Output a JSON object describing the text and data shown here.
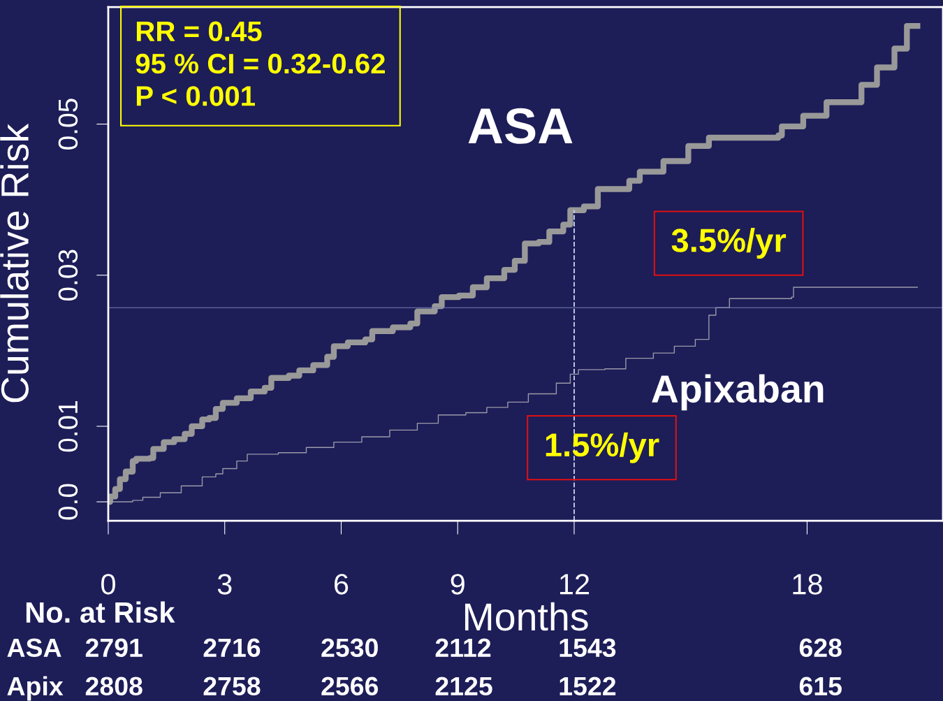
{
  "chart_data": {
    "type": "step",
    "xlabel": "Months",
    "ylabel": "Cumulative Risk",
    "xlim": [
      0,
      21.5
    ],
    "xticks": [
      0,
      3,
      6,
      9,
      12,
      18
    ],
    "ylim": [
      -0.0025,
      0.0655
    ],
    "yticks": [
      {
        "value": 0,
        "label": "0.0"
      },
      0.01,
      0.03,
      0.05
    ],
    "grid": false,
    "series": [
      {
        "name": "ASA",
        "color": "#999999",
        "x": [
          0,
          0.05,
          0.18,
          0.3,
          0.45,
          0.63,
          0.72,
          1.07,
          1.16,
          1.43,
          1.7,
          1.97,
          2.15,
          2.42,
          2.6,
          2.77,
          2.95,
          3.31,
          3.67,
          4.03,
          4.2,
          4.65,
          4.92,
          5.28,
          5.64,
          5.81,
          6.17,
          6.62,
          6.8,
          7.33,
          7.78,
          7.96,
          8.41,
          8.59,
          9.03,
          9.39,
          9.75,
          10.2,
          10.47,
          10.73,
          11.09,
          11.36,
          11.72,
          11.9,
          12.25,
          12.61,
          13.33,
          13.42,
          13.69,
          14.3,
          14.94,
          15.47,
          17.26,
          17.35,
          17.9,
          18.5,
          19.4,
          19.8,
          20.25,
          20.57,
          20.84
        ],
        "values": [
          0,
          0.0007,
          0.0017,
          0.003,
          0.004,
          0.0054,
          0.0057,
          0.0058,
          0.007,
          0.0079,
          0.0083,
          0.009,
          0.01,
          0.0109,
          0.0111,
          0.0123,
          0.0131,
          0.0137,
          0.0146,
          0.0151,
          0.0164,
          0.0167,
          0.0174,
          0.0181,
          0.0192,
          0.0206,
          0.0211,
          0.0215,
          0.0226,
          0.0231,
          0.0236,
          0.0252,
          0.0259,
          0.0271,
          0.0273,
          0.0284,
          0.0296,
          0.0307,
          0.0319,
          0.0342,
          0.0344,
          0.0358,
          0.0367,
          0.0386,
          0.0391,
          0.0414,
          0.0414,
          0.0425,
          0.0437,
          0.0451,
          0.0471,
          0.0482,
          0.0485,
          0.0497,
          0.0511,
          0.0529,
          0.0552,
          0.0575,
          0.06,
          0.063,
          0.063
        ]
      },
      {
        "name": "Apixaban",
        "color": "#9a9aa8",
        "x": [
          0,
          0.63,
          0.89,
          1.34,
          1.88,
          2.42,
          2.77,
          2.95,
          3.31,
          3.58,
          4.38,
          5.1,
          5.81,
          6.53,
          7.25,
          7.96,
          8.5,
          9.21,
          9.75,
          10.29,
          10.82,
          11.54,
          11.9,
          12.11,
          12.79,
          13.33,
          14.04,
          14.58,
          15.12,
          15.47,
          15.65,
          16.0,
          17.6,
          17.65,
          20.84
        ],
        "values": [
          0,
          0.0002,
          0.0006,
          0.0012,
          0.0021,
          0.0033,
          0.0037,
          0.0044,
          0.0054,
          0.0063,
          0.0065,
          0.0072,
          0.0079,
          0.0086,
          0.0095,
          0.0104,
          0.0115,
          0.0118,
          0.0125,
          0.0132,
          0.0143,
          0.0157,
          0.0169,
          0.0175,
          0.0176,
          0.019,
          0.0197,
          0.0206,
          0.0215,
          0.0247,
          0.0257,
          0.0269,
          0.0271,
          0.0284,
          0.0284
        ]
      }
    ],
    "ref_lines": [
      {
        "axis": "x",
        "value": 12,
        "color": "#c8d8f0",
        "line_style": "dashed"
      },
      {
        "axis": "y",
        "value": 0.0257,
        "color": "#7a7fb0",
        "line_style": "solid"
      }
    ],
    "annotations": [
      "RR = 0.45\n95 % CI = 0.32-0.62\nP < 0.001",
      "3.5%/yr",
      "1.5%/yr",
      "No. at Risk",
      "ASA",
      "2791",
      "2716",
      "2530",
      "2112",
      "1543",
      "628",
      "Apix",
      "2808",
      "2758",
      "2566",
      "2125",
      "1522",
      "615"
    ]
  }
}
